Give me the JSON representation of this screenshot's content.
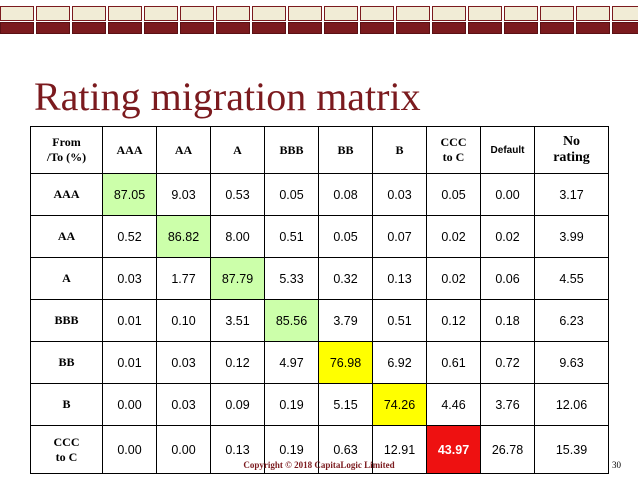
{
  "slide": {
    "title": "Rating migration matrix",
    "footer": "Copyright © 2018   CapitaLogic Limited",
    "page_number": "30",
    "accent_color": "#7b1a1e"
  },
  "matrix": {
    "corner_line1": "From",
    "corner_line2": "/To (%)",
    "columns": [
      "AAA",
      "AA",
      "A",
      "BBB",
      "BB",
      "B",
      "CCC to C",
      "Default",
      "No rating"
    ],
    "column_display": [
      [
        "AAA"
      ],
      [
        "AA"
      ],
      [
        "A"
      ],
      [
        "BBB"
      ],
      [
        "BB"
      ],
      [
        "B"
      ],
      [
        "CCC",
        "to C"
      ],
      [
        "Default"
      ],
      [
        "No",
        "rating"
      ]
    ],
    "rows": [
      {
        "label": [
          "AAA"
        ],
        "values": [
          "87.05",
          "9.03",
          "0.53",
          "0.05",
          "0.08",
          "0.03",
          "0.05",
          "0.00",
          "3.17"
        ]
      },
      {
        "label": [
          "AA"
        ],
        "values": [
          "0.52",
          "86.82",
          "8.00",
          "0.51",
          "0.05",
          "0.07",
          "0.02",
          "0.02",
          "3.99"
        ]
      },
      {
        "label": [
          "A"
        ],
        "values": [
          "0.03",
          "1.77",
          "87.79",
          "5.33",
          "0.32",
          "0.13",
          "0.02",
          "0.06",
          "4.55"
        ]
      },
      {
        "label": [
          "BBB"
        ],
        "values": [
          "0.01",
          "0.10",
          "3.51",
          "85.56",
          "3.79",
          "0.51",
          "0.12",
          "0.18",
          "6.23"
        ]
      },
      {
        "label": [
          "BB"
        ],
        "values": [
          "0.01",
          "0.03",
          "0.12",
          "4.97",
          "76.98",
          "6.92",
          "0.61",
          "0.72",
          "9.63"
        ]
      },
      {
        "label": [
          "B"
        ],
        "values": [
          "0.00",
          "0.03",
          "0.09",
          "0.19",
          "5.15",
          "74.26",
          "4.46",
          "3.76",
          "12.06"
        ]
      },
      {
        "label": [
          "CCC",
          "to C"
        ],
        "values": [
          "0.00",
          "0.00",
          "0.13",
          "0.19",
          "0.63",
          "12.91",
          "43.97",
          "26.78",
          "15.39"
        ]
      }
    ],
    "highlight_colors": {
      "green": "#ccffaa",
      "yellow": "#ffff00",
      "red": "#ee1111"
    }
  }
}
